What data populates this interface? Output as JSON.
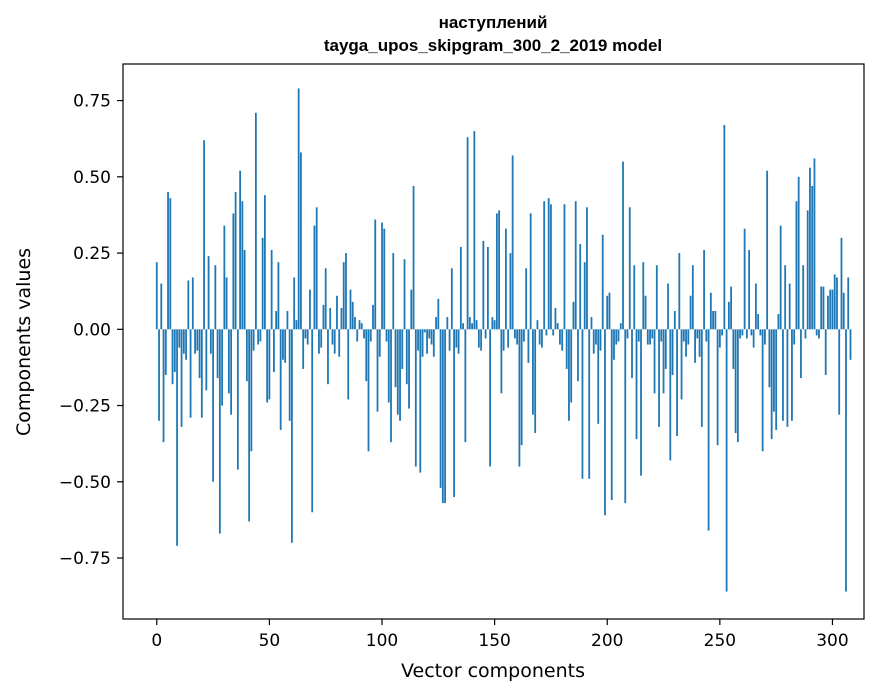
{
  "chart_data": {
    "type": "bar",
    "title_line1": "наступлений",
    "title_line2": "tayga_upos_skipgram_300_2_2019 model",
    "xlabel": "Vector components",
    "ylabel": "Components values",
    "xlim": [
      -15,
      314
    ],
    "ylim": [
      -0.95,
      0.87
    ],
    "x_ticks": [
      {
        "value": 0,
        "label": "0"
      },
      {
        "value": 50,
        "label": "50"
      },
      {
        "value": 100,
        "label": "100"
      },
      {
        "value": 150,
        "label": "150"
      },
      {
        "value": 200,
        "label": "200"
      },
      {
        "value": 250,
        "label": "250"
      },
      {
        "value": 300,
        "label": "300"
      }
    ],
    "y_ticks": [
      {
        "value": 0.75,
        "label": "0.75"
      },
      {
        "value": 0.5,
        "label": "0.50"
      },
      {
        "value": 0.25,
        "label": "0.25"
      },
      {
        "value": 0.0,
        "label": "0.00"
      },
      {
        "value": -0.25,
        "label": "−0.25"
      },
      {
        "value": -0.5,
        "label": "−0.50"
      },
      {
        "value": -0.75,
        "label": "−0.75"
      }
    ],
    "grid": false,
    "bar_color": "#1f77b4",
    "values": [
      0.22,
      -0.3,
      0.15,
      -0.37,
      -0.15,
      0.45,
      0.43,
      -0.18,
      -0.14,
      -0.71,
      -0.06,
      -0.32,
      -0.08,
      -0.1,
      0.16,
      -0.29,
      0.17,
      -0.08,
      -0.07,
      -0.16,
      -0.29,
      0.62,
      -0.2,
      0.24,
      -0.08,
      -0.5,
      0.21,
      -0.16,
      -0.67,
      -0.25,
      0.34,
      0.17,
      -0.21,
      -0.28,
      0.38,
      0.45,
      -0.46,
      0.52,
      0.42,
      0.26,
      -0.17,
      -0.63,
      -0.4,
      -0.07,
      0.71,
      -0.05,
      -0.04,
      0.3,
      0.44,
      -0.24,
      -0.23,
      0.26,
      -0.14,
      0.06,
      0.22,
      -0.33,
      -0.1,
      -0.11,
      0.06,
      -0.3,
      -0.7,
      0.17,
      0.03,
      0.79,
      0.58,
      -0.13,
      -0.03,
      -0.05,
      0.13,
      -0.6,
      0.34,
      0.4,
      -0.08,
      -0.06,
      0.08,
      0.2,
      -0.18,
      0.07,
      -0.05,
      -0.08,
      0.11,
      -0.09,
      0.07,
      0.22,
      0.25,
      -0.23,
      0.13,
      0.09,
      0.04,
      -0.04,
      0.03,
      0.02,
      -0.03,
      -0.17,
      -0.4,
      -0.04,
      0.08,
      0.36,
      -0.27,
      -0.09,
      0.35,
      0.33,
      -0.04,
      -0.24,
      -0.37,
      0.25,
      -0.19,
      -0.28,
      -0.3,
      -0.13,
      0.23,
      -0.18,
      -0.26,
      0.13,
      0.47,
      -0.45,
      -0.07,
      -0.47,
      -0.09,
      -0.01,
      -0.08,
      -0.03,
      -0.05,
      -0.09,
      0.04,
      0.1,
      -0.52,
      -0.57,
      -0.57,
      0.04,
      -0.07,
      0.2,
      -0.55,
      -0.06,
      -0.08,
      0.27,
      0.02,
      -0.37,
      0.63,
      0.04,
      0.02,
      0.65,
      0.03,
      -0.06,
      -0.07,
      0.29,
      -0.03,
      0.27,
      -0.45,
      0.04,
      0.03,
      0.38,
      0.39,
      -0.21,
      -0.07,
      0.33,
      -0.06,
      0.25,
      0.57,
      -0.03,
      -0.05,
      -0.45,
      -0.38,
      -0.04,
      0.2,
      -0.11,
      0.38,
      -0.28,
      -0.34,
      0.03,
      -0.05,
      -0.06,
      0.42,
      -0.02,
      0.43,
      0.41,
      -0.02,
      0.07,
      0.02,
      -0.05,
      -0.07,
      0.41,
      -0.13,
      -0.3,
      -0.24,
      0.09,
      0.42,
      -0.17,
      0.28,
      -0.49,
      0.22,
      0.4,
      -0.49,
      0.04,
      -0.08,
      -0.05,
      -0.31,
      -0.07,
      0.31,
      -0.61,
      0.11,
      0.12,
      -0.56,
      -0.1,
      -0.05,
      -0.04,
      0.02,
      0.55,
      -0.57,
      -0.03,
      0.4,
      -0.16,
      0.21,
      -0.36,
      -0.04,
      -0.48,
      0.22,
      0.11,
      -0.05,
      -0.05,
      -0.03,
      -0.21,
      0.21,
      -0.32,
      -0.04,
      -0.21,
      -0.13,
      0.15,
      -0.43,
      -0.15,
      0.06,
      -0.35,
      0.25,
      -0.23,
      -0.04,
      -0.09,
      -0.05,
      0.11,
      0.21,
      -0.11,
      -0.03,
      -0.09,
      -0.32,
      0.26,
      -0.04,
      -0.66,
      0.12,
      0.06,
      0.06,
      -0.38,
      -0.06,
      -0.02,
      0.67,
      -0.86,
      0.09,
      0.14,
      -0.13,
      -0.34,
      -0.37,
      -0.03,
      -0.02,
      0.33,
      -0.03,
      0.26,
      -0.02,
      -0.06,
      0.15,
      0.05,
      -0.02,
      -0.4,
      -0.05,
      0.52,
      -0.19,
      -0.36,
      -0.27,
      -0.33,
      0.05,
      0.34,
      -0.3,
      0.21,
      -0.32,
      0.15,
      -0.3,
      -0.05,
      0.42,
      0.5,
      -0.16,
      0.21,
      -0.03,
      0.39,
      0.53,
      0.47,
      0.56,
      -0.02,
      -0.03,
      0.14,
      0.14,
      -0.15,
      0.11,
      0.13,
      0.13,
      0.18,
      0.17,
      -0.28,
      0.3,
      0.12,
      -0.86,
      0.17,
      -0.1
    ]
  }
}
